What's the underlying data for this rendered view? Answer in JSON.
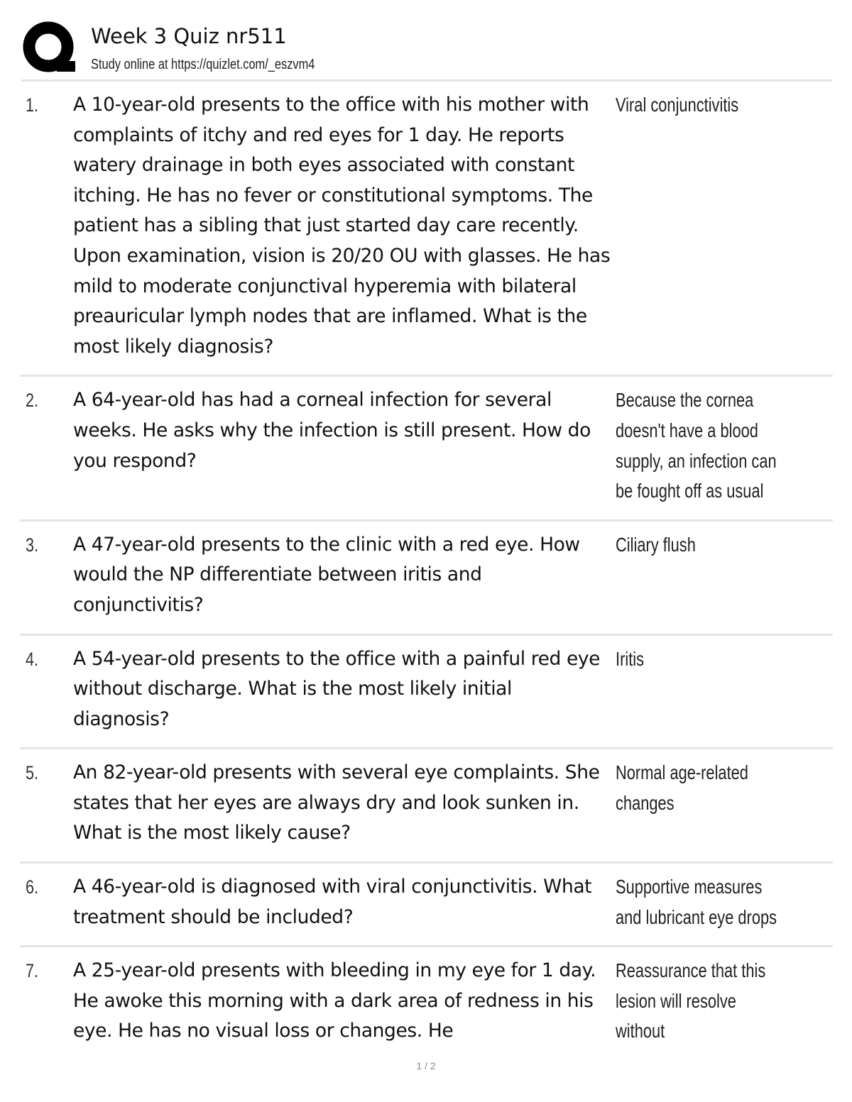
{
  "header": {
    "logo": "Q",
    "title": "Week 3 Quiz nr511",
    "subtitle": "Study online at https://quizlet.com/_eszvm4"
  },
  "cards": [
    {
      "number": "1.",
      "question": "A 10-year-old presents to the office with his mother with complaints of itchy and red eyes for 1 day. He reports watery drainage in both eyes associated with constant itching. He has no fever or constitutional symptoms. The patient has a sibling that just started day care recently. Upon examination, vision is 20/20 OU with glasses. He has mild to moderate conjunctival hyperemia with bilateral preauricular lymph nodes that are inflamed. What is the most likely diagnosis?",
      "answer": "Viral conjunctivitis"
    },
    {
      "number": "2.",
      "question": "A 64-year-old has had a corneal infection for several weeks. He asks why the infection is still present. How do you respond?",
      "answer": "Because the cornea doesn't have a blood supply, an infection can be fought off as usual"
    },
    {
      "number": "3.",
      "question": "A 47-year-old presents to the clinic with a red eye. How would the NP differentiate between iritis and conjunctivitis?",
      "answer": "Ciliary flush"
    },
    {
      "number": "4.",
      "question": "A 54-year-old presents to the office with a painful red eye without discharge. What is the most likely initial diagnosis?",
      "answer": "Iritis"
    },
    {
      "number": "5.",
      "question": "An 82-year-old presents with several eye complaints. She states that her eyes are always dry and look sunken in. What is the most likely cause?",
      "answer": "Normal age-related changes"
    },
    {
      "number": "6.",
      "question": "A 46-year-old is diagnosed with viral conjunctivitis. What treatment should be included?",
      "answer": "Supportive measures and lubricant eye drops"
    },
    {
      "number": "7.",
      "question": "A 25-year-old presents with bleeding in my eye for 1 day. He awoke this morning with a dark area of redness in his eye. He has no visual loss or changes. He",
      "answer": "Reassurance that this lesion will resolve without"
    }
  ],
  "footer": {
    "page": "1 / 2"
  }
}
